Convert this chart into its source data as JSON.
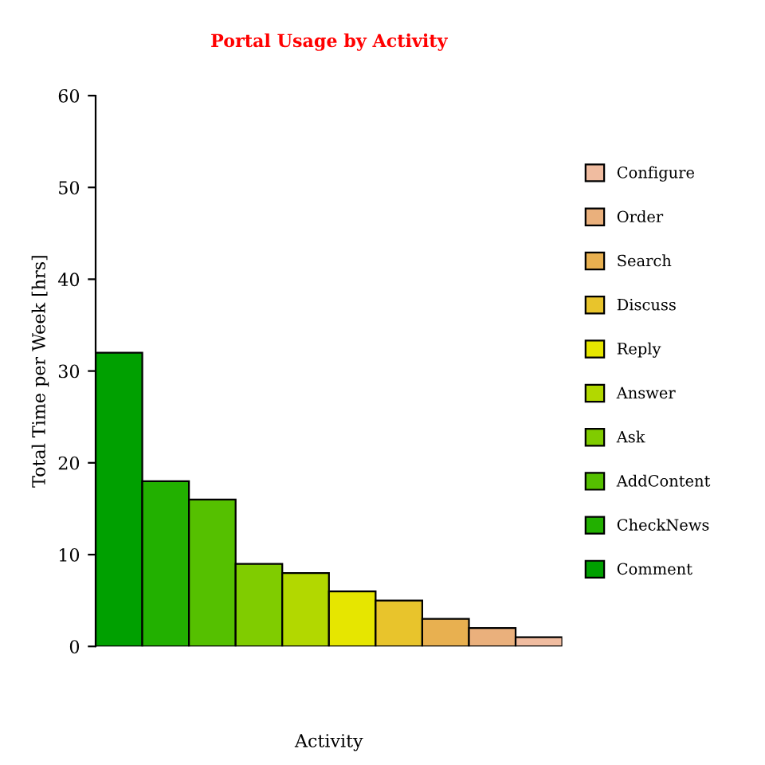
{
  "chart_data": {
    "type": "bar",
    "title": "Portal Usage by Activity",
    "xlabel": "Activity",
    "ylabel": "Total Time per Week [hrs]",
    "categories": [
      null,
      null,
      null,
      null,
      null,
      null,
      null,
      null,
      null,
      null
    ],
    "series": [
      {
        "name": "Comment",
        "color": "#00a000",
        "values": [
          32,
          null,
          null,
          null,
          null,
          null,
          null,
          null,
          null,
          null
        ]
      },
      {
        "name": "CheckNews",
        "color": "#22b000",
        "values": [
          null,
          18,
          null,
          null,
          null,
          null,
          null,
          null,
          null,
          null
        ]
      },
      {
        "name": "AddContent",
        "color": "#55c000",
        "values": [
          null,
          null,
          16,
          null,
          null,
          null,
          null,
          null,
          null,
          null
        ]
      },
      {
        "name": "Ask",
        "color": "#80cc00",
        "values": [
          null,
          null,
          null,
          9,
          null,
          null,
          null,
          null,
          null,
          null
        ]
      },
      {
        "name": "Answer",
        "color": "#b2d800",
        "values": [
          null,
          null,
          null,
          null,
          8,
          null,
          null,
          null,
          null,
          null
        ]
      },
      {
        "name": "Reply",
        "color": "#e6e600",
        "values": [
          null,
          null,
          null,
          null,
          null,
          6,
          null,
          null,
          null,
          null
        ]
      },
      {
        "name": "Discuss",
        "color": "#e8c42c",
        "values": [
          null,
          null,
          null,
          null,
          null,
          null,
          5,
          null,
          null,
          null
        ]
      },
      {
        "name": "Search",
        "color": "#e8b050",
        "values": [
          null,
          null,
          null,
          null,
          null,
          null,
          null,
          3,
          null,
          null
        ]
      },
      {
        "name": "Order",
        "color": "#eab07c",
        "values": [
          null,
          null,
          null,
          null,
          null,
          null,
          null,
          null,
          2,
          null
        ]
      },
      {
        "name": "Configure",
        "color": "#f0bca0",
        "values": [
          null,
          null,
          null,
          null,
          null,
          null,
          null,
          null,
          null,
          1
        ]
      }
    ],
    "ylim": [
      0,
      60
    ],
    "yticks": [
      0,
      10,
      20,
      30,
      40,
      50,
      60
    ],
    "grid": false,
    "legend": "right",
    "stacked": true
  }
}
